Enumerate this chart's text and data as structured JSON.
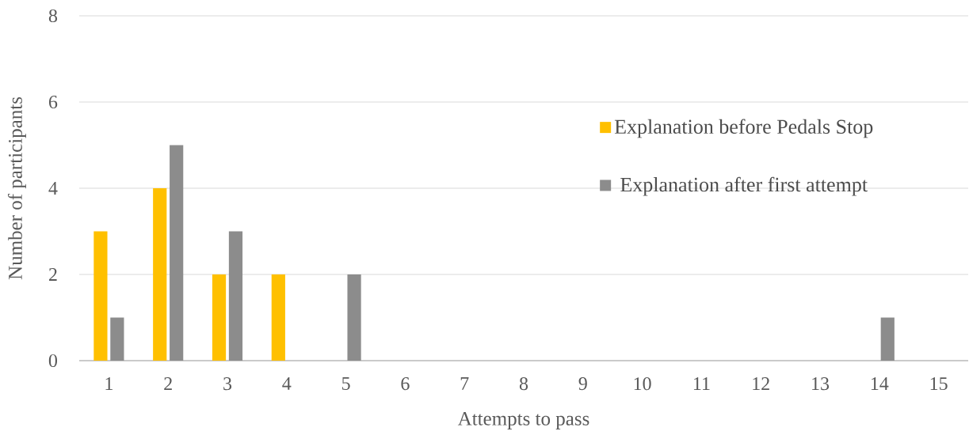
{
  "chart_data": {
    "type": "bar",
    "xlabel": "Attempts to pass",
    "ylabel": "Number of participants",
    "categories": [
      "1",
      "2",
      "3",
      "4",
      "5",
      "6",
      "7",
      "8",
      "9",
      "10",
      "11",
      "12",
      "13",
      "14",
      "15"
    ],
    "series": [
      {
        "name": "Explanation before Pedals Stop",
        "color": "#ffc000",
        "values": [
          3,
          4,
          2,
          2,
          0,
          0,
          0,
          0,
          0,
          0,
          0,
          0,
          0,
          0,
          0
        ]
      },
      {
        "name": "Explanation after first attempt",
        "color": "#8c8c8c",
        "values": [
          1,
          5,
          3,
          0,
          2,
          0,
          0,
          0,
          0,
          0,
          0,
          0,
          0,
          1,
          0
        ]
      }
    ],
    "ylim": [
      0,
      8
    ],
    "yticks": [
      0,
      2,
      4,
      6,
      8
    ],
    "grid": "y",
    "legend": "right"
  }
}
